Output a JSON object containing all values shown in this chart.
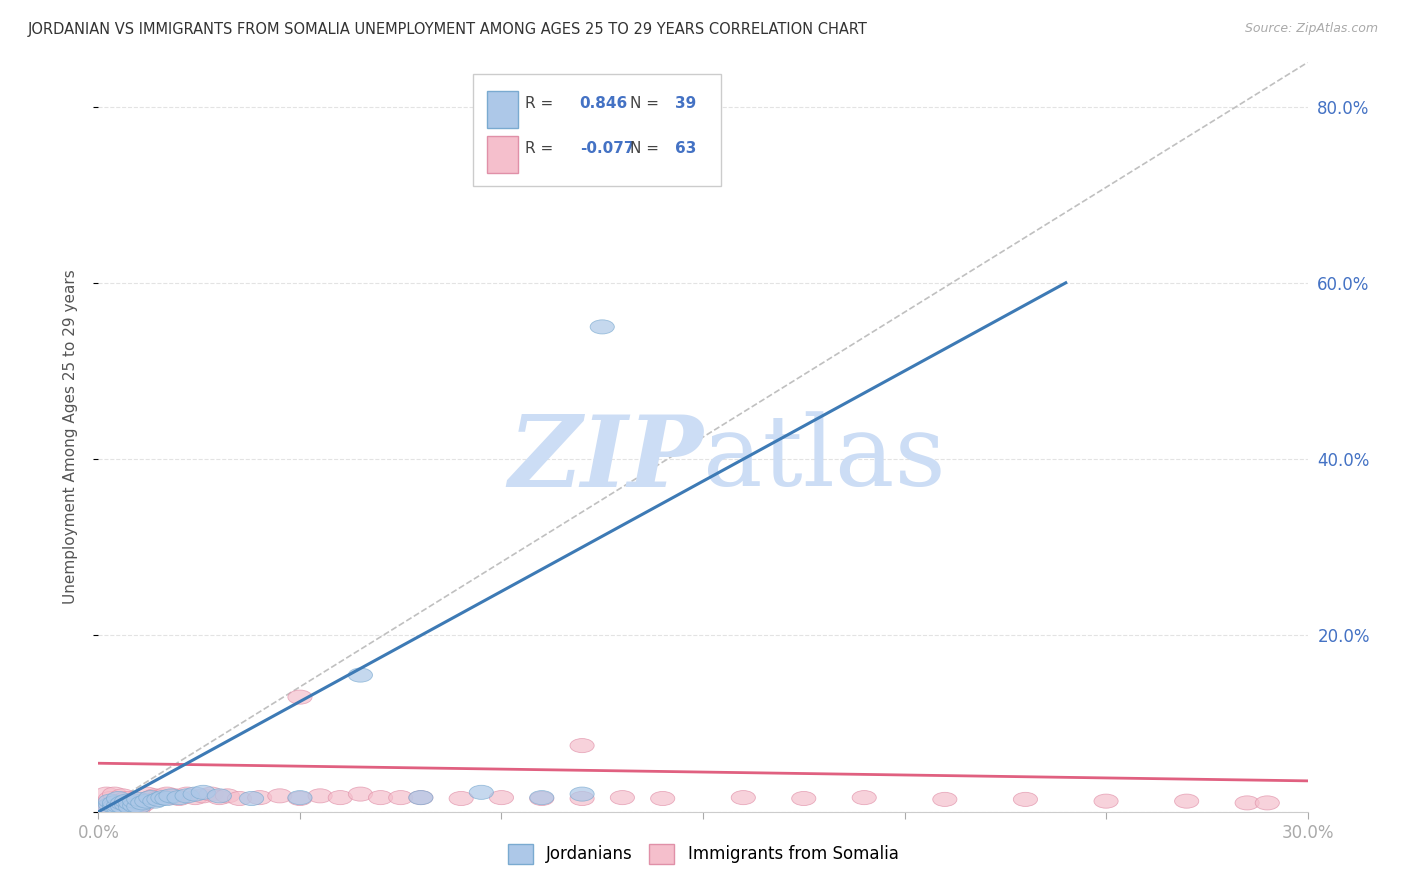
{
  "title": "JORDANIAN VS IMMIGRANTS FROM SOMALIA UNEMPLOYMENT AMONG AGES 25 TO 29 YEARS CORRELATION CHART",
  "source": "Source: ZipAtlas.com",
  "ylabel": "Unemployment Among Ages 25 to 29 years",
  "xlim": [
    0,
    0.3
  ],
  "ylim": [
    0,
    0.85
  ],
  "xticks": [
    0.0,
    0.05,
    0.1,
    0.15,
    0.2,
    0.25,
    0.3
  ],
  "yticks": [
    0.0,
    0.2,
    0.4,
    0.6,
    0.8
  ],
  "legend_labels": [
    "Jordanians",
    "Immigrants from Somalia"
  ],
  "R_jordanian": "0.846",
  "N_jordanian": "39",
  "R_somalia": "-0.077",
  "N_somalia": "63",
  "jordanian_color": "#adc8e8",
  "jordanian_edge_color": "#7aaad0",
  "jordanian_line_color": "#3d7ab5",
  "somalia_color": "#f5bfcc",
  "somalia_edge_color": "#e090a8",
  "somalia_line_color": "#e06080",
  "ref_line_color": "#c0c0c0",
  "background_color": "#ffffff",
  "watermark_color": "#ccddf5",
  "grid_color": "#dddddd",
  "tick_label_color": "#4472c4",
  "text_color": "#555555",
  "jordanian_points_x": [
    0.002,
    0.003,
    0.003,
    0.004,
    0.004,
    0.005,
    0.005,
    0.005,
    0.006,
    0.006,
    0.007,
    0.007,
    0.008,
    0.008,
    0.009,
    0.009,
    0.01,
    0.01,
    0.011,
    0.012,
    0.013,
    0.014,
    0.015,
    0.016,
    0.017,
    0.018,
    0.02,
    0.022,
    0.024,
    0.026,
    0.03,
    0.038,
    0.05,
    0.065,
    0.08,
    0.095,
    0.11,
    0.12,
    0.125
  ],
  "jordanian_points_y": [
    0.005,
    0.008,
    0.012,
    0.006,
    0.01,
    0.004,
    0.007,
    0.015,
    0.006,
    0.01,
    0.008,
    0.012,
    0.005,
    0.01,
    0.007,
    0.012,
    0.006,
    0.014,
    0.01,
    0.012,
    0.016,
    0.012,
    0.014,
    0.016,
    0.015,
    0.018,
    0.016,
    0.018,
    0.02,
    0.022,
    0.018,
    0.015,
    0.016,
    0.155,
    0.016,
    0.022,
    0.016,
    0.02,
    0.55
  ],
  "somalia_points_x": [
    0.001,
    0.002,
    0.002,
    0.003,
    0.003,
    0.004,
    0.004,
    0.005,
    0.005,
    0.006,
    0.006,
    0.007,
    0.007,
    0.008,
    0.008,
    0.009,
    0.009,
    0.01,
    0.01,
    0.011,
    0.012,
    0.012,
    0.013,
    0.014,
    0.015,
    0.016,
    0.017,
    0.018,
    0.019,
    0.02,
    0.022,
    0.024,
    0.026,
    0.028,
    0.03,
    0.032,
    0.035,
    0.04,
    0.045,
    0.05,
    0.055,
    0.06,
    0.065,
    0.07,
    0.075,
    0.08,
    0.09,
    0.1,
    0.11,
    0.12,
    0.13,
    0.14,
    0.16,
    0.175,
    0.19,
    0.21,
    0.23,
    0.25,
    0.27,
    0.285,
    0.29,
    0.05,
    0.12
  ],
  "somalia_points_y": [
    0.005,
    0.01,
    0.02,
    0.005,
    0.015,
    0.008,
    0.02,
    0.005,
    0.012,
    0.006,
    0.018,
    0.008,
    0.015,
    0.005,
    0.01,
    0.006,
    0.014,
    0.004,
    0.01,
    0.008,
    0.012,
    0.02,
    0.016,
    0.018,
    0.016,
    0.018,
    0.02,
    0.016,
    0.018,
    0.015,
    0.02,
    0.016,
    0.018,
    0.02,
    0.016,
    0.018,
    0.015,
    0.016,
    0.018,
    0.015,
    0.018,
    0.016,
    0.02,
    0.016,
    0.016,
    0.016,
    0.015,
    0.016,
    0.015,
    0.015,
    0.016,
    0.015,
    0.016,
    0.015,
    0.016,
    0.014,
    0.014,
    0.012,
    0.012,
    0.01,
    0.01,
    0.13,
    0.075
  ],
  "jord_line_x": [
    0.0,
    0.24
  ],
  "jord_line_y": [
    0.0,
    0.6
  ],
  "soma_line_x": [
    0.0,
    0.3
  ],
  "soma_line_y": [
    0.055,
    0.035
  ]
}
